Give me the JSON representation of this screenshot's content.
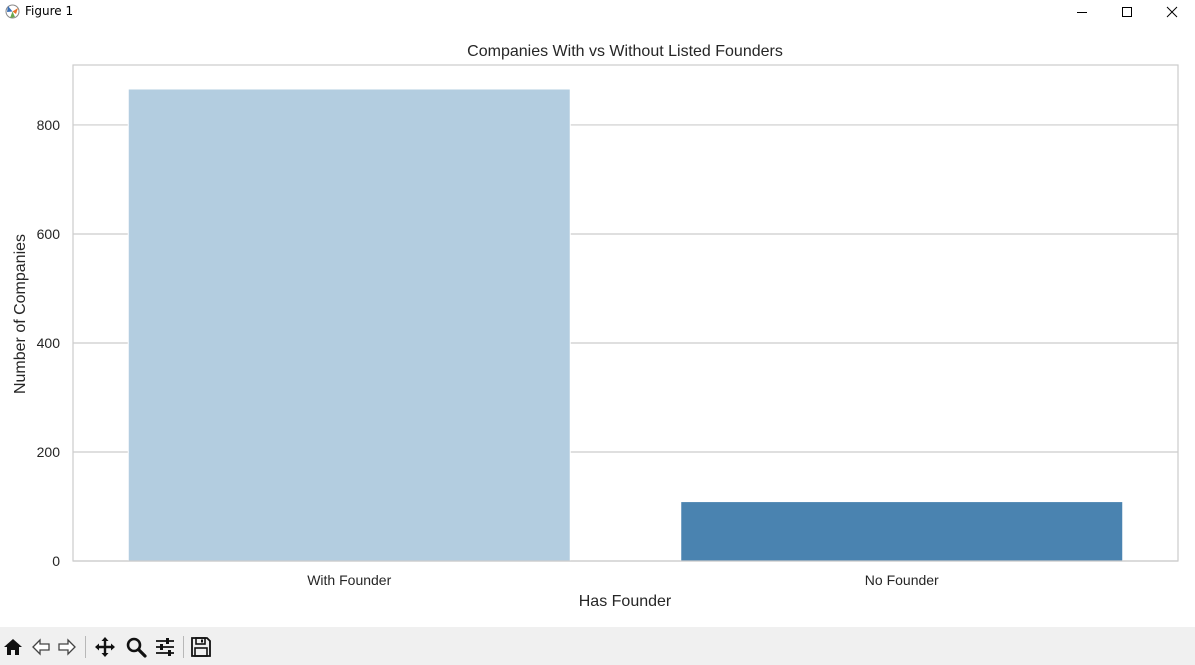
{
  "window": {
    "title": "Figure 1",
    "controls": [
      "minimize-icon",
      "maximize-icon",
      "close-icon"
    ]
  },
  "chart_data": {
    "type": "bar",
    "title": "Companies With vs Without Listed Founders",
    "xlabel": "Has Founder",
    "ylabel": "Number of Companies",
    "categories": [
      "With Founder",
      "No Founder"
    ],
    "values": [
      866,
      109
    ],
    "colors": [
      "#b3cde0",
      "#4a83b0"
    ],
    "ylim": [
      0,
      910
    ],
    "yticks": [
      0,
      200,
      400,
      600,
      800
    ],
    "grid": "horizontal",
    "legend": "none"
  },
  "toolbar": {
    "tools": [
      "home-icon",
      "back-icon",
      "forward-icon",
      "pan-icon",
      "zoom-icon",
      "configure-subplots-icon",
      "save-icon"
    ]
  }
}
